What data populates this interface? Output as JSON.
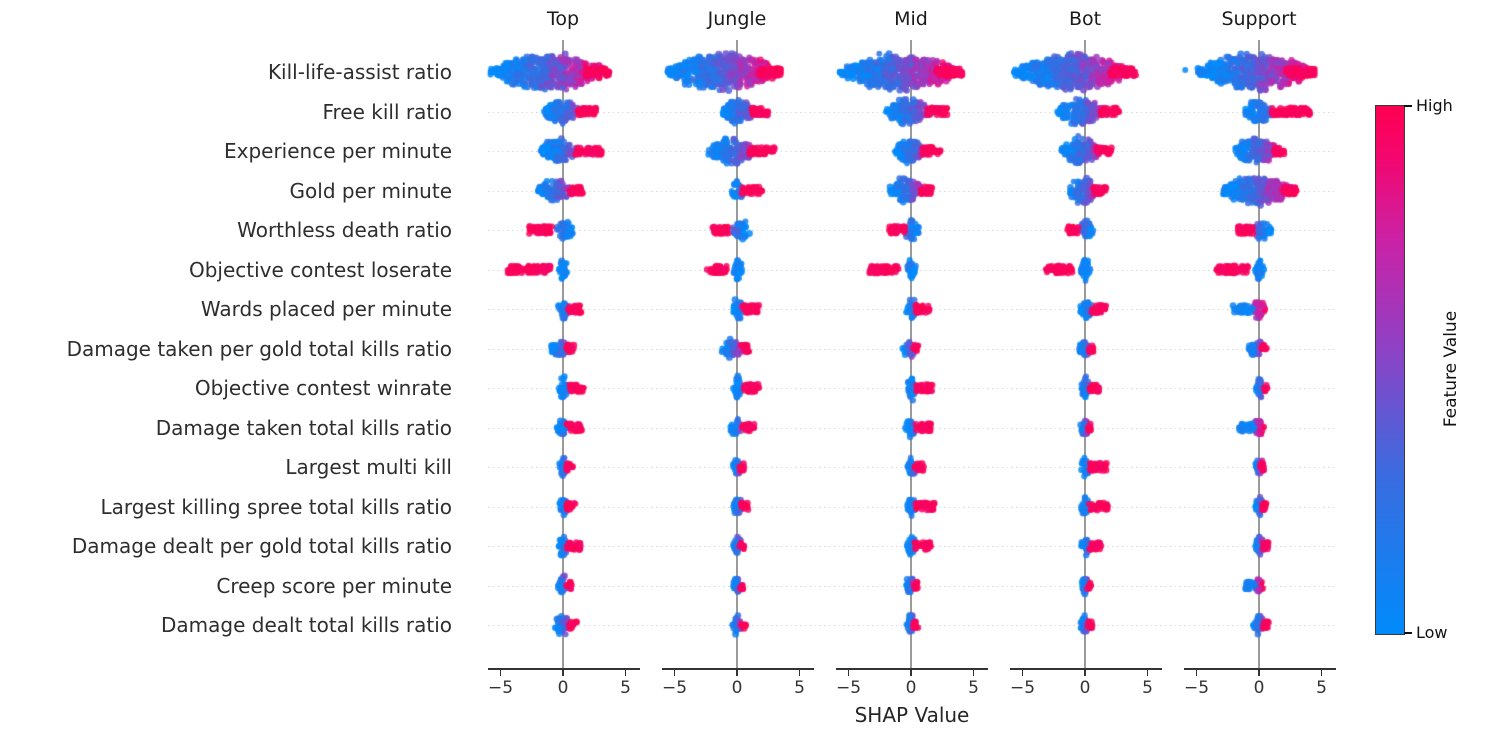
{
  "chart_data": {
    "type": "beeswarm",
    "description": "SHAP summary beeswarm plots per role",
    "panels": [
      "Top",
      "Jungle",
      "Mid",
      "Bot",
      "Support"
    ],
    "features": [
      "Kill-life-assist ratio",
      "Free kill ratio",
      "Experience per minute",
      "Gold per minute",
      "Worthless death ratio",
      "Objective contest loserate",
      "Wards placed per minute",
      "Damage taken per gold total kills ratio",
      "Objective contest winrate",
      "Damage taken total kills ratio",
      "Largest multi kill",
      "Largest killing spree total kills ratio",
      "Damage dealt per gold total kills ratio",
      "Creep score per minute",
      "Damage dealt total kills ratio"
    ],
    "xlabel": "SHAP Value",
    "x_tick_labels": [
      "−5",
      "0",
      "5"
    ],
    "x_tick_values": [
      -5,
      0,
      5
    ],
    "xlim": [
      -6.1,
      6.1
    ],
    "grid": "dotted horizontal per feature row",
    "colorbar": {
      "label": "Feature Value",
      "high": "High",
      "low": "Low",
      "color_high": "#ff0051",
      "color_low": "#008bfb"
    },
    "colormap_stops": [
      [
        0,
        "#008bfb"
      ],
      [
        0.3,
        "#3a6ce0"
      ],
      [
        0.55,
        "#9140c4"
      ],
      [
        0.75,
        "#cc21a5"
      ],
      [
        0.9,
        "#f2076f"
      ],
      [
        1,
        "#ff0051"
      ]
    ],
    "swarm": {
      "Top": [
        {
          "b": [
            -5.8,
            3.6,
            16
          ],
          "t": [
            1.8,
            3.7
          ],
          "s": "hi",
          "f": 0
        },
        {
          "b": [
            -1.6,
            1.3,
            11
          ],
          "t": [
            1.2,
            2.7
          ],
          "s": "hi",
          "f": 0
        },
        {
          "b": [
            -1.8,
            1.1,
            11
          ],
          "t": [
            1.0,
            3.1
          ],
          "s": "hi",
          "f": 0
        },
        {
          "b": [
            -2.0,
            0.7,
            9
          ],
          "t": [
            0.5,
            1.6
          ],
          "s": "hi",
          "f": 0
        },
        {
          "b": [
            -0.5,
            0.8,
            9
          ],
          "t": [
            -2.7,
            -0.7
          ],
          "s": "hi",
          "f": 1
        },
        {
          "b": [
            -0.3,
            0.4,
            11
          ],
          "t": [
            -4.5,
            -1.0
          ],
          "s": "hi",
          "f": 1
        },
        {
          "b": [
            -0.4,
            0.5,
            9
          ],
          "t": [
            0.4,
            1.5
          ],
          "s": "hi",
          "f": 0
        },
        {
          "b": [
            -1.0,
            0.4,
            8
          ],
          "t": [
            0.3,
            0.9
          ],
          "s": "hi",
          "f": 0
        },
        {
          "b": [
            -0.3,
            0.4,
            11
          ],
          "t": [
            0.5,
            1.7
          ],
          "s": "hi",
          "f": 0
        },
        {
          "b": [
            -0.5,
            0.4,
            8
          ],
          "t": [
            0.3,
            1.5
          ],
          "s": "hi",
          "f": 0
        },
        {
          "b": [
            -0.3,
            0.4,
            8
          ],
          "t": [
            0.3,
            0.8
          ],
          "s": "hi",
          "f": 0
        },
        {
          "b": [
            -0.3,
            0.4,
            9
          ],
          "t": [
            0.3,
            1.0
          ],
          "s": "hi",
          "f": 0
        },
        {
          "b": [
            -0.4,
            0.4,
            10
          ],
          "t": [
            0.3,
            1.4
          ],
          "s": "hi",
          "f": 0
        },
        {
          "b": [
            -0.4,
            0.3,
            8
          ],
          "t": [
            0.2,
            0.7
          ],
          "s": "hi",
          "f": 0
        },
        {
          "b": [
            -0.7,
            0.5,
            9
          ],
          "t": [
            0.4,
            1.1
          ],
          "s": "hi",
          "f": 0
        }
      ],
      "Jungle": [
        {
          "b": [
            -5.6,
            3.5,
            16
          ],
          "t": [
            1.8,
            3.5
          ],
          "s": "hi",
          "f": 0
        },
        {
          "b": [
            -1.3,
            1.5,
            11
          ],
          "t": [
            1.2,
            2.5
          ],
          "s": "hi",
          "f": 0
        },
        {
          "b": [
            -2.3,
            1.3,
            12
          ],
          "t": [
            1.0,
            3.0
          ],
          "s": "hi",
          "f": 0
        },
        {
          "b": [
            -0.5,
            0.6,
            8
          ],
          "t": [
            0.4,
            2.0
          ],
          "s": "hi",
          "f": 0
        },
        {
          "b": [
            -0.4,
            1.0,
            9
          ],
          "t": [
            -2.0,
            -0.6
          ],
          "s": "hi",
          "f": 1
        },
        {
          "b": [
            -0.3,
            0.4,
            11
          ],
          "t": [
            -2.4,
            -0.8
          ],
          "s": "hi",
          "f": 1
        },
        {
          "b": [
            -0.4,
            0.5,
            9
          ],
          "t": [
            0.4,
            1.8
          ],
          "s": "hi",
          "f": 0
        },
        {
          "b": [
            -1.3,
            0.5,
            8
          ],
          "t": [
            0.3,
            1.0
          ],
          "s": "hi",
          "f": 0
        },
        {
          "b": [
            -0.3,
            0.4,
            11
          ],
          "t": [
            0.5,
            1.8
          ],
          "s": "hi",
          "f": 0
        },
        {
          "b": [
            -0.6,
            0.4,
            8
          ],
          "t": [
            0.4,
            1.4
          ],
          "s": "hi",
          "f": 0
        },
        {
          "b": [
            -0.3,
            0.3,
            8
          ],
          "t": [
            0.2,
            0.6
          ],
          "s": "hi",
          "f": 0
        },
        {
          "b": [
            -0.3,
            0.4,
            8
          ],
          "t": [
            0.3,
            0.9
          ],
          "s": "hi",
          "f": 0
        },
        {
          "b": [
            -0.3,
            0.4,
            9
          ],
          "t": [
            0.2,
            0.6
          ],
          "s": "hi",
          "f": 0
        },
        {
          "b": [
            -0.3,
            0.3,
            8
          ],
          "t": [
            0.2,
            0.5
          ],
          "s": "hi",
          "f": 0
        },
        {
          "b": [
            -0.4,
            0.4,
            9
          ],
          "t": [
            0.3,
            0.7
          ],
          "s": "hi",
          "f": 0
        }
      ],
      "Mid": [
        {
          "b": [
            -5.7,
            3.9,
            16
          ],
          "t": [
            2.0,
            4.1
          ],
          "s": "hi",
          "f": 0
        },
        {
          "b": [
            -2.0,
            1.6,
            12
          ],
          "t": [
            1.3,
            2.9
          ],
          "s": "hi",
          "f": 0
        },
        {
          "b": [
            -1.3,
            1.1,
            11
          ],
          "t": [
            0.9,
            2.4
          ],
          "s": "hi",
          "f": 0
        },
        {
          "b": [
            -1.7,
            1.0,
            11
          ],
          "t": [
            0.8,
            1.7
          ],
          "s": "hi",
          "f": 0
        },
        {
          "b": [
            -0.5,
            0.7,
            9
          ],
          "t": [
            -1.8,
            -0.5
          ],
          "s": "hi",
          "f": 1
        },
        {
          "b": [
            -0.3,
            0.4,
            10
          ],
          "t": [
            -3.3,
            -0.9
          ],
          "s": "hi",
          "f": 1
        },
        {
          "b": [
            -0.4,
            0.5,
            9
          ],
          "t": [
            0.4,
            1.5
          ],
          "s": "hi",
          "f": 0
        },
        {
          "b": [
            -0.7,
            0.4,
            8
          ],
          "t": [
            0.2,
            0.6
          ],
          "s": "hi",
          "f": 0
        },
        {
          "b": [
            -0.3,
            0.4,
            11
          ],
          "t": [
            0.4,
            1.7
          ],
          "s": "hi",
          "f": 0
        },
        {
          "b": [
            -0.5,
            0.4,
            8
          ],
          "t": [
            0.3,
            1.6
          ],
          "s": "hi",
          "f": 0
        },
        {
          "b": [
            -0.3,
            0.4,
            8
          ],
          "t": [
            0.3,
            1.0
          ],
          "s": "hi",
          "f": 0
        },
        {
          "b": [
            -0.3,
            0.4,
            8
          ],
          "t": [
            0.4,
            1.9
          ],
          "s": "hi",
          "f": 0
        },
        {
          "b": [
            -0.3,
            0.4,
            9
          ],
          "t": [
            0.3,
            1.6
          ],
          "s": "hi",
          "f": 0
        },
        {
          "b": [
            -0.4,
            0.3,
            8
          ],
          "t": [
            0.2,
            0.5
          ],
          "s": "hi",
          "f": 0
        },
        {
          "b": [
            -0.4,
            0.4,
            9
          ],
          "t": [
            0.2,
            0.6
          ],
          "s": "hi",
          "f": 0
        }
      ],
      "Bot": [
        {
          "b": [
            -5.7,
            3.7,
            16
          ],
          "t": [
            2.0,
            4.1
          ],
          "s": "hi",
          "f": 0
        },
        {
          "b": [
            -2.2,
            1.5,
            12
          ],
          "t": [
            1.2,
            2.7
          ],
          "s": "hi",
          "f": 0
        },
        {
          "b": [
            -1.9,
            1.2,
            12
          ],
          "t": [
            0.9,
            2.2
          ],
          "s": "hi",
          "f": 0
        },
        {
          "b": [
            -1.4,
            1.0,
            12
          ],
          "t": [
            0.7,
            1.7
          ],
          "s": "hi",
          "f": 0
        },
        {
          "b": [
            -0.4,
            0.7,
            9
          ],
          "t": [
            -1.4,
            -0.4
          ],
          "s": "hi",
          "f": 1
        },
        {
          "b": [
            -0.3,
            0.4,
            12
          ],
          "t": [
            -3.2,
            -1.0
          ],
          "s": "hi",
          "f": 1
        },
        {
          "b": [
            -0.4,
            0.6,
            10
          ],
          "t": [
            0.5,
            1.7
          ],
          "s": "hi",
          "f": 0
        },
        {
          "b": [
            -0.5,
            0.4,
            8
          ],
          "t": [
            0.3,
            0.7
          ],
          "s": "hi",
          "f": 0
        },
        {
          "b": [
            -0.3,
            0.4,
            11
          ],
          "t": [
            0.4,
            1.2
          ],
          "s": "hi",
          "f": 0
        },
        {
          "b": [
            -0.4,
            0.4,
            8
          ],
          "t": [
            0.2,
            0.5
          ],
          "s": "hi",
          "f": 0
        },
        {
          "b": [
            -0.3,
            0.4,
            9
          ],
          "t": [
            0.4,
            1.8
          ],
          "s": "hi",
          "f": 0
        },
        {
          "b": [
            -0.3,
            0.4,
            9
          ],
          "t": [
            0.3,
            1.8
          ],
          "s": "hi",
          "f": 0
        },
        {
          "b": [
            -0.3,
            0.4,
            9
          ],
          "t": [
            0.3,
            1.3
          ],
          "s": "hi",
          "f": 0
        },
        {
          "b": [
            -0.3,
            0.3,
            8
          ],
          "t": [
            0.2,
            0.5
          ],
          "s": "hi",
          "f": 0
        },
        {
          "b": [
            -0.4,
            0.4,
            9
          ],
          "t": [
            0.2,
            0.6
          ],
          "s": "hi",
          "f": 0
        }
      ],
      "Support": [
        {
          "b": [
            -4.9,
            4.4,
            16
          ],
          "t": [
            2.2,
            4.5
          ],
          "s": "hi",
          "f": 0,
          "o": [
            -5.9
          ]
        },
        {
          "b": [
            -1.2,
            1.0,
            10
          ],
          "t": [
            1.0,
            4.1
          ],
          "s": "hi",
          "f": 0
        },
        {
          "b": [
            -2.0,
            1.6,
            12
          ],
          "t": [
            1.2,
            2.1
          ],
          "s": "hi",
          "f": 0
        },
        {
          "b": [
            -3.0,
            2.9,
            13
          ],
          "t": [
            2.0,
            3.0
          ],
          "s": "hi",
          "f": 0
        },
        {
          "b": [
            -0.5,
            1.0,
            9
          ],
          "t": [
            -1.7,
            -0.5
          ],
          "s": "hi",
          "f": 1
        },
        {
          "b": [
            -0.3,
            0.4,
            10
          ],
          "t": [
            -3.4,
            -0.9
          ],
          "s": "hi",
          "f": 1
        },
        {
          "b": [
            -0.5,
            0.5,
            9
          ],
          "t": [
            -2.1,
            -0.5
          ],
          "s": "lo",
          "f": 0
        },
        {
          "b": [
            -0.8,
            0.5,
            8
          ],
          "t": [
            0.2,
            0.6
          ],
          "s": "hi",
          "f": 0
        },
        {
          "b": [
            -0.3,
            0.4,
            11
          ],
          "t": [
            0.3,
            0.7
          ],
          "s": "hi",
          "f": 0
        },
        {
          "b": [
            -0.4,
            0.4,
            8
          ],
          "t": [
            -1.6,
            -0.4
          ],
          "s": "lo",
          "f": 0
        },
        {
          "b": [
            -0.3,
            0.4,
            9
          ],
          "t": [
            0.1,
            0.4
          ],
          "s": "hi",
          "f": 0
        },
        {
          "b": [
            -0.3,
            0.4,
            9
          ],
          "t": [
            0.2,
            0.6
          ],
          "s": "hi",
          "f": 0
        },
        {
          "b": [
            -0.4,
            0.5,
            8
          ],
          "t": [
            0.3,
            0.8
          ],
          "s": "hi",
          "f": 0
        },
        {
          "b": [
            -0.3,
            0.3,
            9
          ],
          "t": [
            -1.1,
            -0.3
          ],
          "s": "lo",
          "f": 0
        },
        {
          "b": [
            -0.5,
            0.5,
            9
          ],
          "t": [
            0.3,
            0.8
          ],
          "s": "hi",
          "f": 0
        }
      ]
    }
  }
}
